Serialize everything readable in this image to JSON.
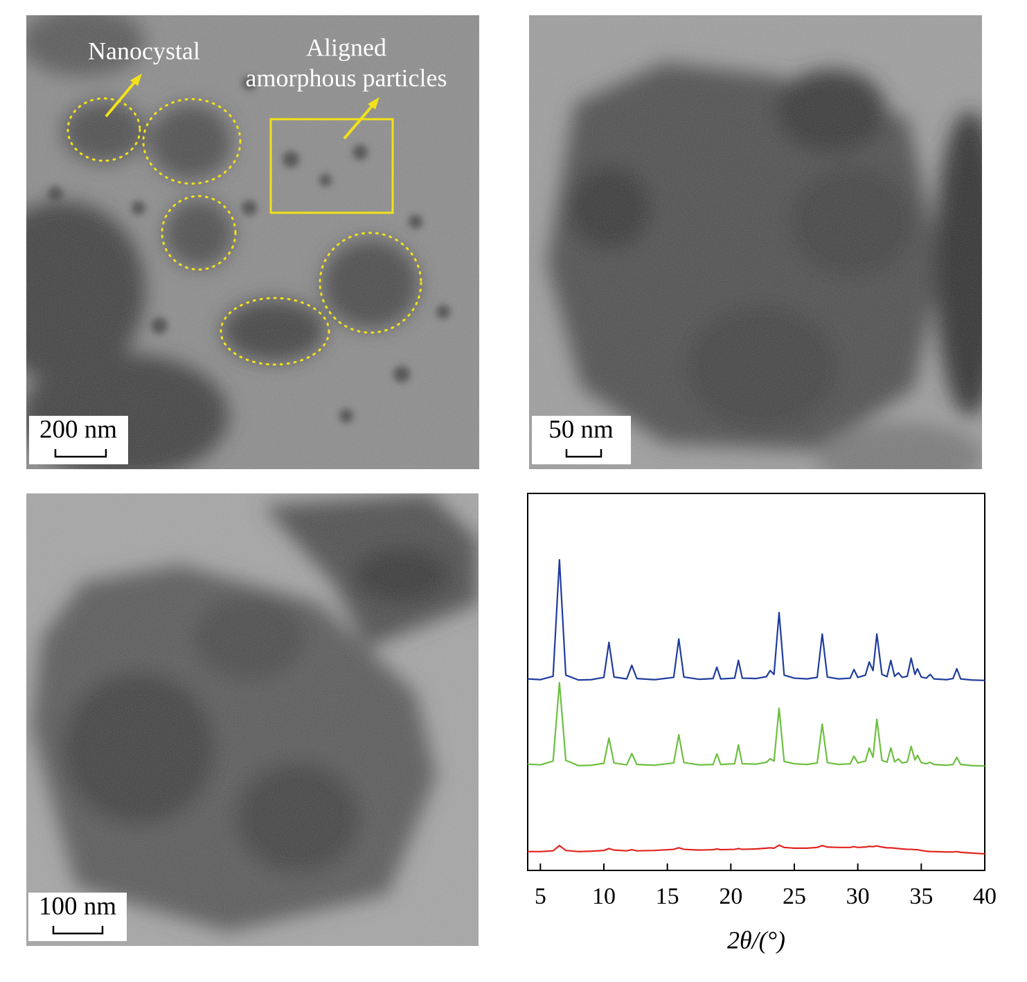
{
  "images": [
    {
      "annotations": [
        "Nanocystal",
        "Aligned",
        "amorphous particles"
      ],
      "scale_bar": "200 nm"
    },
    {
      "scale_bar": "50 nm"
    },
    {
      "scale_bar": "100 nm"
    }
  ],
  "chart_data": {
    "type": "line",
    "x_label": "2θ/(°)",
    "x": [
      4,
      5,
      6.0,
      6.5,
      7.0,
      8,
      9,
      10.0,
      10.4,
      10.8,
      11.8,
      12.2,
      12.6,
      14,
      15.5,
      15.9,
      16.3,
      17.5,
      18.6,
      18.9,
      19.2,
      20.3,
      20.6,
      20.9,
      22,
      22.8,
      23.1,
      23.4,
      23.8,
      24.2,
      25,
      26,
      26.8,
      27.2,
      27.6,
      28.5,
      29.4,
      29.7,
      30.0,
      30.6,
      30.9,
      31.2,
      31.5,
      31.9,
      32.3,
      32.6,
      32.9,
      33.2,
      33.5,
      33.9,
      34.2,
      34.5,
      34.7,
      35.0,
      35.4,
      35.7,
      36.0,
      37,
      37.5,
      37.8,
      38.1,
      39,
      40
    ],
    "series": [
      {
        "color": "#1f3c9c",
        "values": [
          50.8,
          50.6,
          51.5,
          82.4,
          51.8,
          50.5,
          50.6,
          51.2,
          60.5,
          51.3,
          50.8,
          54.4,
          50.9,
          50.6,
          51.2,
          61.4,
          51.3,
          50.7,
          50.9,
          53.9,
          50.8,
          51.0,
          55.7,
          51.0,
          50.9,
          51.4,
          53.0,
          52.0,
          68.4,
          51.8,
          51.0,
          50.8,
          51.2,
          62.7,
          51.3,
          50.8,
          51.0,
          53.3,
          51.2,
          51.8,
          55.3,
          53.0,
          62.7,
          52.0,
          51.4,
          55.7,
          51.5,
          52.4,
          51.2,
          51.5,
          56.3,
          52.0,
          53.5,
          51.3,
          51.0,
          52.0,
          50.8,
          50.6,
          50.9,
          53.5,
          50.8,
          50.5,
          50.4
        ]
      },
      {
        "color": "#6cbf3f",
        "values": [
          28.2,
          28.0,
          29.0,
          49.8,
          29.2,
          27.8,
          27.9,
          28.4,
          35.1,
          28.5,
          28.0,
          31.0,
          28.1,
          27.9,
          28.5,
          36.0,
          28.6,
          28.0,
          28.1,
          30.9,
          28.1,
          28.3,
          33.3,
          28.3,
          28.2,
          28.7,
          29.6,
          29.0,
          43.0,
          28.9,
          28.3,
          28.1,
          28.5,
          38.8,
          28.6,
          28.1,
          28.3,
          30.3,
          28.5,
          29.0,
          32.5,
          30.0,
          40.1,
          29.2,
          28.7,
          32.5,
          28.8,
          29.6,
          28.5,
          28.8,
          32.9,
          29.3,
          30.5,
          28.6,
          28.3,
          28.7,
          28.1,
          27.9,
          28.1,
          30.0,
          28.1,
          27.8,
          27.7
        ]
      },
      {
        "color": "#e2231f",
        "values": [
          5.0,
          5.0,
          5.2,
          6.6,
          5.3,
          5.0,
          5.1,
          5.3,
          5.8,
          5.4,
          5.2,
          5.5,
          5.2,
          5.3,
          5.6,
          6.0,
          5.6,
          5.4,
          5.5,
          5.7,
          5.5,
          5.6,
          5.8,
          5.6,
          5.7,
          5.9,
          6.0,
          5.9,
          6.7,
          6.1,
          5.9,
          5.9,
          6.1,
          6.6,
          6.2,
          6.1,
          6.1,
          6.3,
          6.1,
          6.2,
          6.4,
          6.3,
          6.5,
          6.2,
          6.0,
          6.0,
          5.9,
          5.8,
          5.7,
          5.6,
          5.6,
          5.5,
          5.5,
          5.3,
          5.1,
          5.0,
          5.0,
          4.9,
          4.9,
          5.0,
          4.8,
          4.6,
          4.4
        ]
      }
    ],
    "xlim": [
      4,
      40
    ],
    "xticks": [
      5,
      10,
      15,
      20,
      25,
      30,
      35,
      40
    ],
    "ylim": [
      0,
      100
    ]
  }
}
